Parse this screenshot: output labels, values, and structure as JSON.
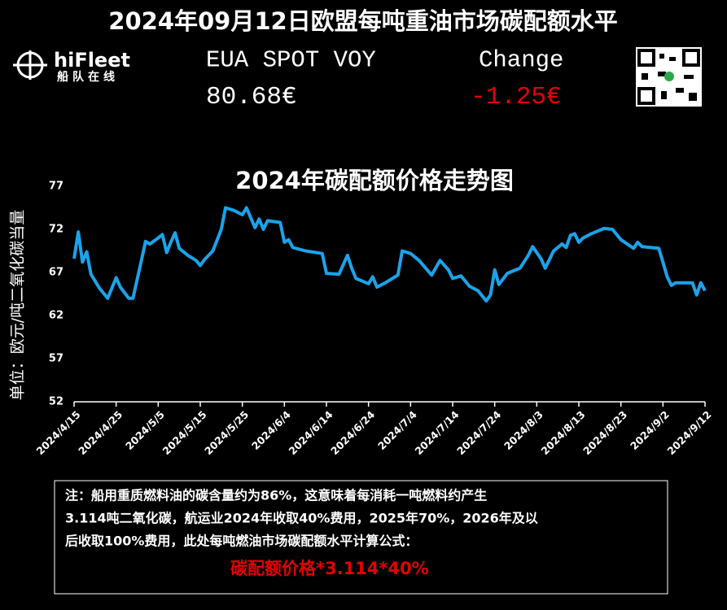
{
  "header": {
    "title": "2024年09月12日欧盟每吨重油市场碳配额水平",
    "logo": {
      "brand": "hiFleet",
      "tagline": "船队在线"
    },
    "quote": {
      "label": "EUA SPOT VOY",
      "price": "80.68€",
      "change_label": "Change",
      "change": "-1.25€"
    }
  },
  "chart_data": {
    "type": "line",
    "title": "2024年碳配额价格走势图",
    "y_label": "单位：欧元/吨二氧化碳当量",
    "x": [
      "2024/4/15",
      "2024/4/16",
      "2024/4/17",
      "2024/4/18",
      "2024/4/19",
      "2024/4/21",
      "2024/4/23",
      "2024/4/25",
      "2024/4/26",
      "2024/4/28",
      "2024/4/29",
      "2024/5/1",
      "2024/5/2",
      "2024/5/3",
      "2024/5/5",
      "2024/5/6",
      "2024/5/7",
      "2024/5/8",
      "2024/5/9",
      "2024/5/10",
      "2024/5/12",
      "2024/5/14",
      "2024/5/15",
      "2024/5/16",
      "2024/5/18",
      "2024/5/20",
      "2024/5/21",
      "2024/5/23",
      "2024/5/25",
      "2024/5/26",
      "2024/5/28",
      "2024/5/29",
      "2024/5/30",
      "2024/5/31",
      "2024/6/3",
      "2024/6/4",
      "2024/6/5",
      "2024/6/6",
      "2024/6/9",
      "2024/6/13",
      "2024/6/14",
      "2024/6/17",
      "2024/6/19",
      "2024/6/20",
      "2024/6/21",
      "2024/6/24",
      "2024/6/25",
      "2024/6/26",
      "2024/6/28",
      "2024/7/1",
      "2024/7/2",
      "2024/7/4",
      "2024/7/6",
      "2024/7/9",
      "2024/7/11",
      "2024/7/13",
      "2024/7/14",
      "2024/7/16",
      "2024/7/18",
      "2024/7/20",
      "2024/7/22",
      "2024/7/23",
      "2024/7/24",
      "2024/7/25",
      "2024/7/27",
      "2024/7/30",
      "2024/8/1",
      "2024/8/2",
      "2024/8/4",
      "2024/8/5",
      "2024/8/7",
      "2024/8/9",
      "2024/8/10",
      "2024/8/11",
      "2024/8/12",
      "2024/8/13",
      "2024/8/14",
      "2024/8/16",
      "2024/8/19",
      "2024/8/21",
      "2024/8/23",
      "2024/8/26",
      "2024/8/27",
      "2024/8/28",
      "2024/9/1",
      "2024/9/2",
      "2024/9/3",
      "2024/9/4",
      "2024/9/5",
      "2024/9/9",
      "2024/9/10",
      "2024/9/11",
      "2024/9/12"
    ],
    "series": [
      {
        "color": "#1aa3ea",
        "values": [
          68.6,
          71.7,
          68.2,
          69.4,
          66.8,
          65.2,
          64.0,
          66.4,
          65.3,
          64.0,
          64.0,
          68.4,
          70.6,
          70.3,
          71.0,
          71.4,
          69.3,
          70.5,
          71.6,
          69.8,
          69.0,
          68.4,
          67.8,
          68.5,
          69.5,
          72.0,
          74.5,
          74.2,
          73.7,
          74.5,
          72.2,
          73.2,
          72.0,
          73.0,
          72.8,
          70.5,
          70.8,
          69.9,
          69.5,
          69.2,
          66.9,
          66.8,
          69.0,
          67.5,
          66.3,
          65.7,
          66.5,
          65.3,
          65.8,
          66.7,
          69.5,
          69.2,
          68.4,
          66.7,
          68.4,
          67.3,
          66.3,
          66.6,
          65.4,
          64.9,
          63.7,
          64.4,
          67.3,
          65.6,
          66.9,
          67.5,
          69.0,
          70.0,
          68.6,
          67.5,
          69.5,
          70.3,
          69.9,
          71.3,
          71.5,
          70.5,
          71.0,
          71.5,
          72.1,
          72.0,
          70.8,
          69.8,
          70.5,
          70.0,
          69.8,
          68.2,
          66.5,
          65.5,
          65.8,
          65.8,
          64.4,
          65.8,
          64.9
        ]
      }
    ],
    "ylim": [
      52,
      77
    ],
    "yticks": [
      52,
      57,
      62,
      67,
      72,
      77
    ],
    "xlim": [
      "2024/4/15",
      "2024/9/12"
    ],
    "xticks": [
      "2024/4/15",
      "2024/4/25",
      "2024/5/5",
      "2024/5/15",
      "2024/5/25",
      "2024/6/4",
      "2024/6/14",
      "2024/6/24",
      "2024/7/4",
      "2024/7/14",
      "2024/7/24",
      "2024/8/3",
      "2024/8/13",
      "2024/8/23",
      "2024/9/2",
      "2024/9/12"
    ]
  },
  "note": {
    "lines": [
      "注：船用重质燃料油的碳含量约为86%，这意味着每消耗一吨燃料约产生",
      "3.114吨二氧化碳，航运业2024年收取40%费用，2025年70%，2026年及以",
      "后收取100%费用，此处每吨燃油市场碳配额水平计算公式："
    ],
    "formula": "碳配额价格*3.114*40%"
  }
}
